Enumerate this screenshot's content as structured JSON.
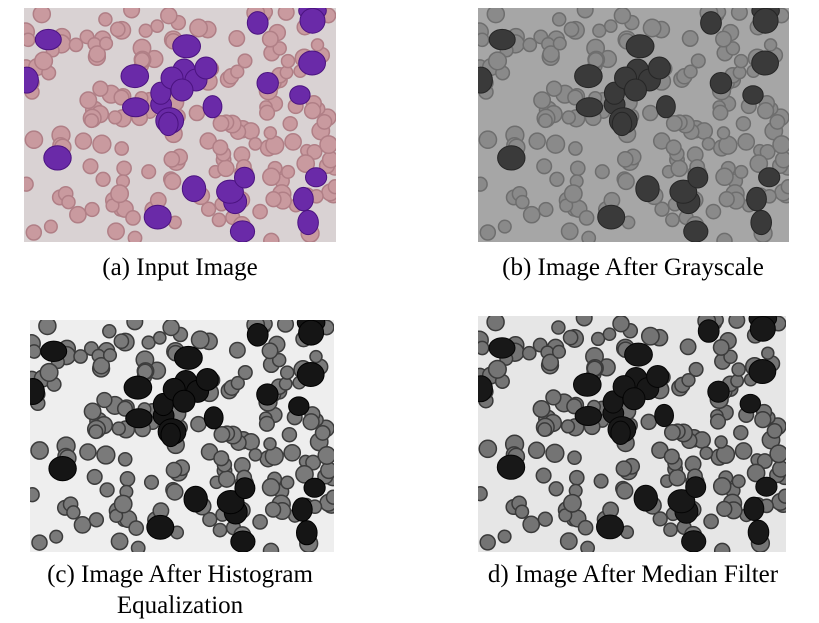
{
  "figure": {
    "panels": [
      {
        "caption": "(a) Input Image"
      },
      {
        "caption": "(b) Image After Grayscale"
      },
      {
        "caption": "(c) Image After Histogram Equalization"
      },
      {
        "caption": "d) Image After Median Filter"
      }
    ]
  }
}
